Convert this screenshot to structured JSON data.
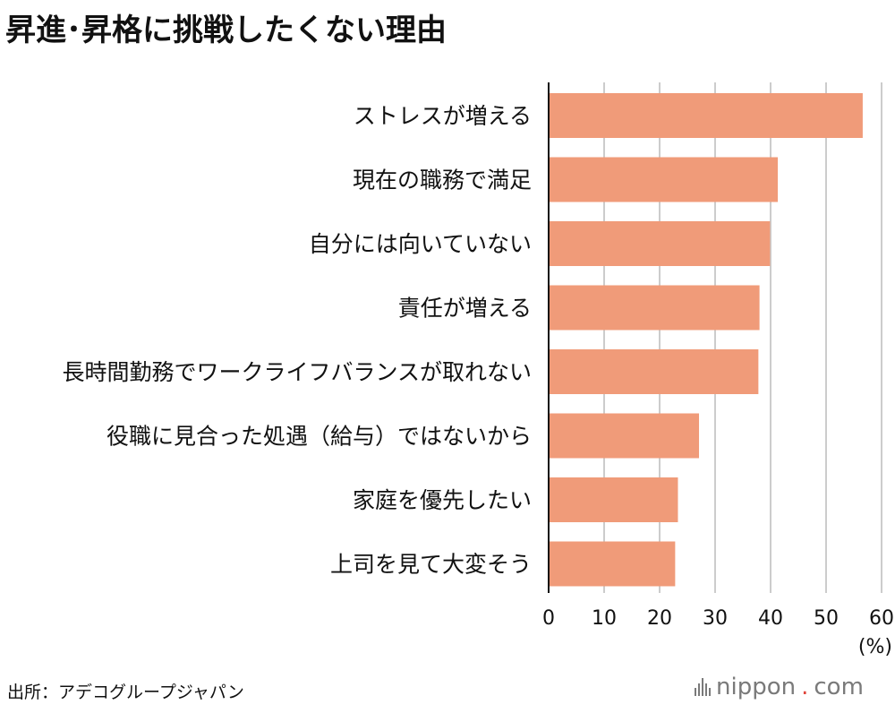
{
  "title": "昇進･昇格に挑戦したくない理由",
  "source": "出所：アデコグループジャパン",
  "brand": {
    "name": "nippon",
    "dot": ".",
    "tld": "com",
    "dot_color": "#e0453b"
  },
  "chart_data": {
    "type": "bar",
    "orientation": "horizontal",
    "categories": [
      "ストレスが増える",
      "現在の職務で満足",
      "自分には向いていない",
      "責任が増える",
      "長時間勤務でワークライフバランスが取れない",
      "役職に見合った処遇（給与）ではないから",
      "家庭を優先したい",
      "上司を見て大変そう"
    ],
    "values": [
      56.6,
      41.3,
      39.9,
      38.0,
      37.8,
      27.1,
      23.3,
      22.8
    ],
    "xlim": [
      0,
      60
    ],
    "xticks": [
      0,
      10,
      20,
      30,
      40,
      50,
      60
    ],
    "xticks_labels": [
      "0",
      "10",
      "20",
      "30",
      "40",
      "50",
      "60"
    ],
    "unit_label": "(%)",
    "grid": true,
    "bar_color": "#f09b79",
    "grid_color": "#cccccc"
  }
}
